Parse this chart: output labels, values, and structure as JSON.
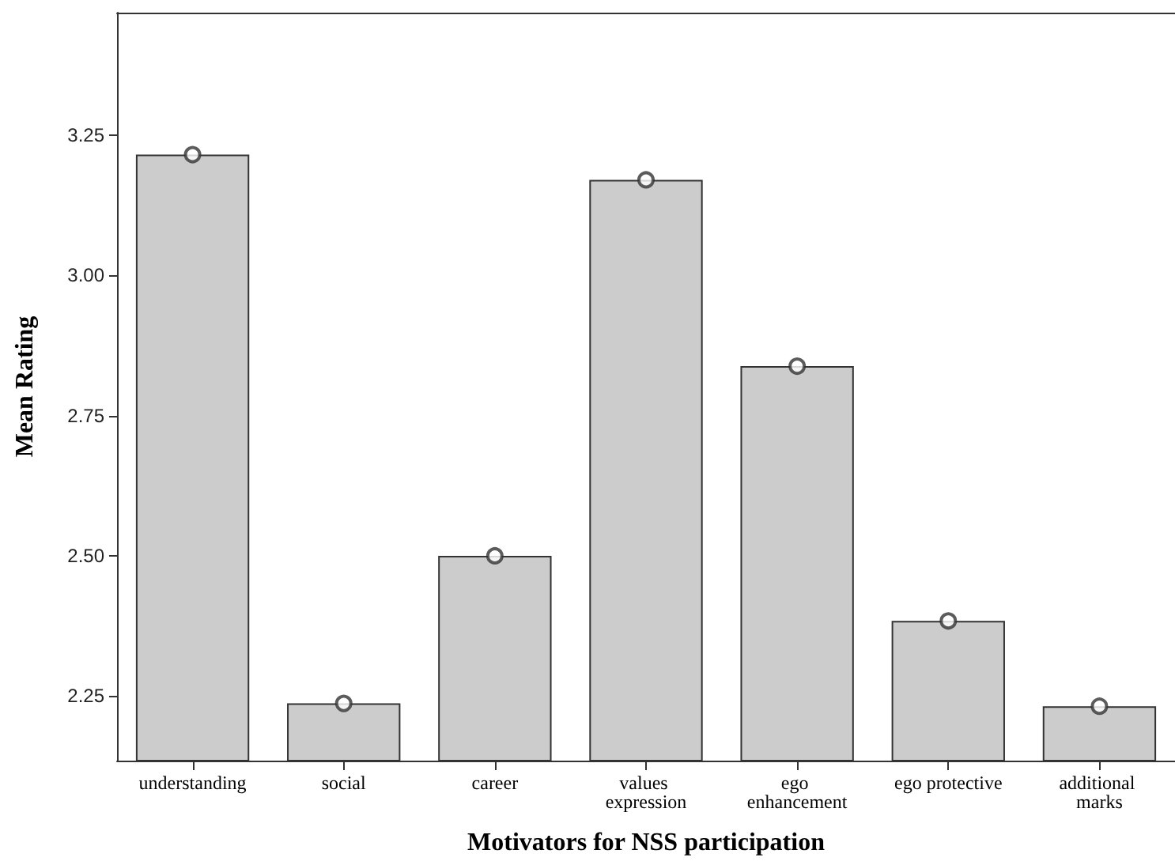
{
  "chart_data": {
    "type": "bar",
    "xlabel": "Motivators for NSS participation",
    "ylabel": "Mean Rating",
    "categories": [
      "understanding",
      "social",
      "career",
      "values expression",
      "ego enhancement",
      "ego protective",
      "additional marks"
    ],
    "series": [
      {
        "color": "#cccccc",
        "values": [
          3.215,
          2.237,
          2.5,
          3.17,
          2.838,
          2.384,
          2.232
        ]
      },
      {
        "type": "scatter",
        "color": "#333333",
        "marker": "circle",
        "x": [
          "understanding",
          "social",
          "career",
          "values expression",
          "ego enhancement",
          "ego protective",
          "additional marks"
        ],
        "values": [
          3.215,
          2.237,
          2.5,
          3.17,
          2.838,
          2.384,
          2.232
        ]
      }
    ],
    "ylim": [
      2.135,
      3.468
    ],
    "yticks": [
      {
        "value": 2.25,
        "label": "2.25"
      },
      {
        "value": 2.5,
        "label": "2.50"
      },
      {
        "value": 2.75,
        "label": "2.75"
      },
      {
        "value": 3.0,
        "label": "3.00"
      },
      {
        "value": 3.25,
        "label": "3.25"
      }
    ],
    "grid": false
  }
}
